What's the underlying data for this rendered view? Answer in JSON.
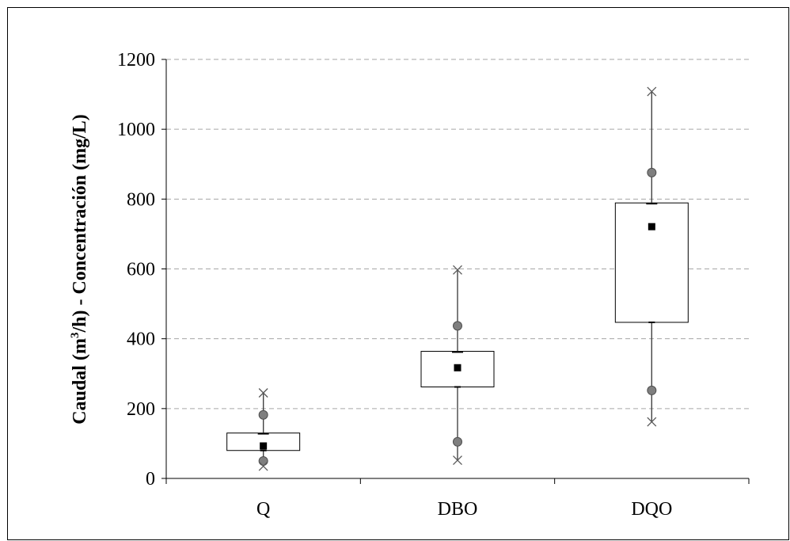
{
  "chart_data": {
    "type": "box",
    "ylabel": "Caudal (m³/h) - Concentración (mg/L)",
    "ylabel_parts": [
      "Caudal (m",
      "3",
      "/h) - Concentración (mg/L)"
    ],
    "ylim": [
      0,
      1200
    ],
    "yticks": [
      0,
      200,
      400,
      600,
      800,
      1000,
      1200
    ],
    "grid": "horizontal dashed",
    "categories": [
      "Q",
      "DBO",
      "DQO"
    ],
    "boxes": [
      {
        "category": "Q",
        "min": 35,
        "p10": 50,
        "q1": 80,
        "median": 128,
        "q3": 130,
        "p90": 182,
        "max": 245,
        "mean": 93
      },
      {
        "category": "DBO",
        "min": 52,
        "p10": 105,
        "q1": 262,
        "median": 362,
        "q3": 364,
        "p90": 437,
        "max": 597,
        "mean": 317
      },
      {
        "category": "DQO",
        "min": 162,
        "p10": 252,
        "q1": 447,
        "median": 787,
        "q3": 789,
        "p90": 876,
        "max": 1108,
        "mean": 721
      }
    ],
    "colors": {
      "box_fill": "#ffffff",
      "box_stroke": "#000000",
      "mean_marker": "#000000",
      "percentile_marker": "#7f7f7f",
      "extreme_marker": "#595959",
      "grid": "#a6a6a6"
    }
  }
}
